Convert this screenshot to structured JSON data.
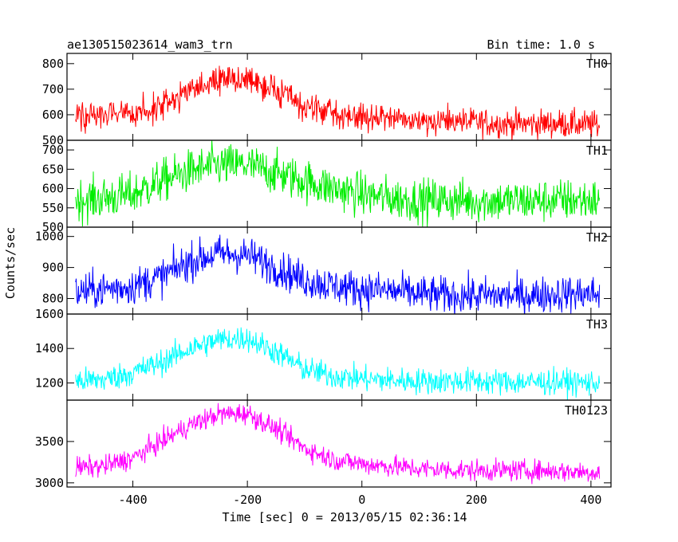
{
  "header": {
    "title": "ae130515023614_wam3_trn",
    "bin_time": "Bin time: 1.0 s"
  },
  "axes": {
    "xlabel": "Time [sec] 0 = 2013/05/15 02:36:14",
    "ylabel": "Counts/sec",
    "xlim": [
      -515,
      435
    ],
    "xticks": [
      -400,
      -200,
      0,
      200,
      400
    ]
  },
  "chart_data": [
    {
      "type": "line",
      "name": "TH0",
      "color": "#ff0000",
      "ylim": [
        500,
        840
      ],
      "yticks": [
        500,
        600,
        700,
        800
      ],
      "x": [
        -500,
        -450,
        -400,
        -350,
        -300,
        -250,
        -200,
        -150,
        -100,
        -50,
        0,
        50,
        100,
        150,
        200,
        250,
        300,
        350,
        400
      ],
      "y": [
        595,
        600,
        605,
        630,
        690,
        735,
        740,
        690,
        630,
        605,
        590,
        585,
        580,
        575,
        570,
        565,
        565,
        565,
        560
      ],
      "noise": 28
    },
    {
      "type": "line",
      "name": "TH1",
      "color": "#00ee00",
      "ylim": [
        500,
        725
      ],
      "yticks": [
        500,
        550,
        600,
        650,
        700
      ],
      "x": [
        -500,
        -450,
        -400,
        -350,
        -300,
        -250,
        -200,
        -150,
        -100,
        -50,
        0,
        50,
        100,
        150,
        200,
        250,
        300,
        350,
        400
      ],
      "y": [
        570,
        575,
        585,
        620,
        645,
        660,
        660,
        640,
        620,
        600,
        585,
        575,
        570,
        570,
        568,
        568,
        568,
        570,
        570
      ],
      "noise": 28
    },
    {
      "type": "line",
      "name": "TH2",
      "color": "#0000ff",
      "ylim": [
        750,
        1030
      ],
      "yticks": [
        750,
        800,
        900,
        1000
      ],
      "tick_labels": [
        "",
        "800",
        "900",
        "1000"
      ],
      "x": [
        -500,
        -450,
        -400,
        -350,
        -300,
        -250,
        -200,
        -150,
        -100,
        -50,
        0,
        50,
        100,
        150,
        200,
        250,
        300,
        350,
        400
      ],
      "y": [
        820,
        830,
        840,
        870,
        920,
        945,
        940,
        900,
        860,
        840,
        830,
        825,
        815,
        810,
        810,
        810,
        810,
        815,
        815
      ],
      "noise": 30
    },
    {
      "type": "line",
      "name": "TH3",
      "color": "#00ffff",
      "ylim": [
        1100,
        1600
      ],
      "yticks": [
        1200,
        1400,
        1600
      ],
      "tick_labels": [
        "1200",
        "1400",
        "1600"
      ],
      "x": [
        -500,
        -450,
        -400,
        -350,
        -300,
        -250,
        -200,
        -150,
        -100,
        -50,
        0,
        50,
        100,
        150,
        200,
        250,
        300,
        350,
        400
      ],
      "y": [
        1210,
        1220,
        1260,
        1320,
        1400,
        1450,
        1460,
        1380,
        1280,
        1240,
        1225,
        1215,
        1210,
        1210,
        1210,
        1205,
        1205,
        1205,
        1200
      ],
      "noise": 38
    },
    {
      "type": "line",
      "name": "TH0123",
      "color": "#ff00ff",
      "ylim": [
        2950,
        4000
      ],
      "yticks": [
        3000,
        3500
      ],
      "x": [
        -500,
        -450,
        -400,
        -350,
        -300,
        -250,
        -200,
        -150,
        -100,
        -50,
        0,
        50,
        100,
        150,
        200,
        250,
        300,
        350,
        400
      ],
      "y": [
        3180,
        3200,
        3300,
        3500,
        3700,
        3830,
        3840,
        3650,
        3420,
        3280,
        3230,
        3200,
        3170,
        3160,
        3150,
        3150,
        3150,
        3140,
        3130
      ],
      "noise": 65
    }
  ]
}
